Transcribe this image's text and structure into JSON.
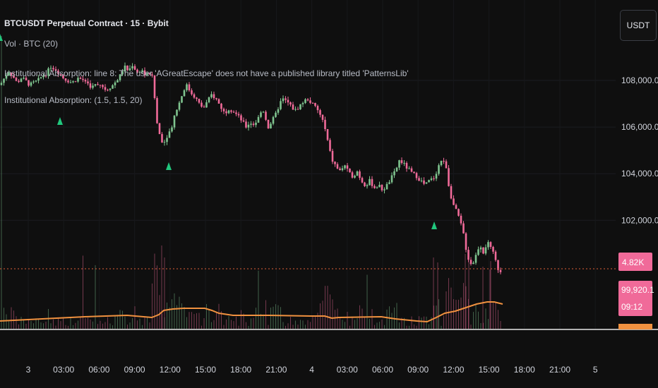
{
  "header": {
    "symbol_title": "BTCUSDT Perpetual Contract · 15 · Bybit",
    "volume_legend": "Vol · BTC (20)",
    "error_legend": "Institutional Absorption: line 8: The user 'AGreatEscape' does not have a published library titled 'PatternsLib'",
    "indicator_legend": "Institutional Absorption: (1.5, 1.5, 20)"
  },
  "currency_button": "USDT",
  "price_scale": {
    "ticks": [
      "108,000.0",
      "106,000.0",
      "104,000.0",
      "102,000.0"
    ]
  },
  "badges": {
    "volume": "4.82K",
    "price": "99,920.1",
    "countdown": "09:12"
  },
  "colors": {
    "background": "#0f0f0f",
    "up_candle": "#7fc48f",
    "down_candle": "#f06a99",
    "volume_ma": "#f0913f",
    "signal_arrow": "#21c77d",
    "last_price_line": "#e0613a",
    "badge_pink": "#f06a99"
  },
  "chart_data": {
    "type": "candlestick",
    "ylim": [
      98400,
      109800
    ],
    "x_ticks": [
      "3",
      "03:00",
      "06:00",
      "09:00",
      "12:00",
      "15:00",
      "18:00",
      "21:00",
      "4",
      "03:00",
      "06:00",
      "09:00",
      "12:00",
      "15:00",
      "18:00",
      "21:00",
      "5"
    ],
    "last_price": 99920.1,
    "price_path": [
      [
        0,
        107800
      ],
      [
        6,
        108100
      ],
      [
        12,
        108400
      ],
      [
        18,
        108200
      ],
      [
        24,
        107900
      ],
      [
        30,
        108100
      ],
      [
        36,
        108000
      ],
      [
        42,
        107800
      ],
      [
        48,
        107900
      ],
      [
        54,
        108000
      ],
      [
        60,
        108200
      ],
      [
        66,
        108300
      ],
      [
        72,
        108600
      ],
      [
        78,
        108500
      ],
      [
        84,
        108300
      ],
      [
        90,
        108100
      ],
      [
        96,
        108000
      ],
      [
        102,
        107900
      ],
      [
        110,
        108100
      ],
      [
        120,
        108000
      ],
      [
        130,
        107700
      ],
      [
        140,
        107900
      ],
      [
        150,
        107600
      ],
      [
        160,
        107800
      ],
      [
        170,
        108200
      ],
      [
        176,
        108600
      ],
      [
        182,
        108400
      ],
      [
        188,
        108700
      ],
      [
        194,
        108300
      ],
      [
        200,
        108500
      ],
      [
        206,
        108200
      ],
      [
        212,
        108300
      ],
      [
        216,
        108100
      ],
      [
        218,
        107900
      ],
      [
        220,
        106600
      ],
      [
        224,
        105900
      ],
      [
        228,
        105500
      ],
      [
        232,
        105300
      ],
      [
        236,
        105600
      ],
      [
        240,
        105800
      ],
      [
        244,
        106100
      ],
      [
        248,
        106600
      ],
      [
        252,
        106900
      ],
      [
        256,
        107200
      ],
      [
        260,
        107600
      ],
      [
        264,
        107800
      ],
      [
        270,
        107500
      ],
      [
        276,
        107300
      ],
      [
        282,
        107000
      ],
      [
        288,
        106800
      ],
      [
        294,
        107100
      ],
      [
        300,
        107400
      ],
      [
        306,
        107200
      ],
      [
        312,
        106900
      ],
      [
        318,
        106600
      ],
      [
        324,
        106800
      ],
      [
        330,
        106700
      ],
      [
        336,
        106500
      ],
      [
        342,
        106300
      ],
      [
        348,
        106000
      ],
      [
        354,
        106200
      ],
      [
        360,
        106100
      ],
      [
        366,
        106400
      ],
      [
        372,
        106800
      ],
      [
        376,
        106400
      ],
      [
        380,
        106000
      ],
      [
        384,
        106200
      ],
      [
        390,
        106500
      ],
      [
        396,
        107000
      ],
      [
        400,
        107200
      ],
      [
        406,
        107100
      ],
      [
        412,
        106900
      ],
      [
        418,
        106700
      ],
      [
        424,
        106900
      ],
      [
        430,
        107100
      ],
      [
        436,
        107200
      ],
      [
        442,
        107000
      ],
      [
        448,
        106800
      ],
      [
        454,
        106500
      ],
      [
        458,
        106200
      ],
      [
        462,
        105700
      ],
      [
        466,
        105100
      ],
      [
        470,
        104600
      ],
      [
        476,
        104300
      ],
      [
        482,
        104100
      ],
      [
        488,
        104400
      ],
      [
        494,
        104000
      ],
      [
        500,
        103900
      ],
      [
        506,
        104100
      ],
      [
        512,
        103700
      ],
      [
        518,
        103500
      ],
      [
        524,
        103700
      ],
      [
        530,
        103400
      ],
      [
        536,
        103500
      ],
      [
        542,
        103300
      ],
      [
        548,
        103500
      ],
      [
        554,
        103800
      ],
      [
        560,
        104100
      ],
      [
        566,
        104600
      ],
      [
        572,
        104400
      ],
      [
        578,
        104200
      ],
      [
        584,
        104000
      ],
      [
        590,
        103900
      ],
      [
        596,
        103700
      ],
      [
        602,
        103500
      ],
      [
        608,
        103700
      ],
      [
        614,
        103800
      ],
      [
        620,
        104200
      ],
      [
        624,
        104600
      ],
      [
        628,
        104500
      ],
      [
        632,
        104300
      ],
      [
        636,
        103400
      ],
      [
        640,
        102900
      ],
      [
        644,
        102500
      ],
      [
        648,
        102300
      ],
      [
        652,
        101900
      ],
      [
        656,
        101500
      ],
      [
        660,
        100800
      ],
      [
        664,
        100300
      ],
      [
        668,
        100100
      ],
      [
        672,
        100300
      ],
      [
        676,
        100700
      ],
      [
        680,
        101000
      ],
      [
        684,
        100600
      ],
      [
        688,
        100900
      ],
      [
        692,
        101000
      ],
      [
        696,
        100700
      ],
      [
        700,
        100500
      ],
      [
        704,
        100000
      ],
      [
        708,
        99800
      ],
      [
        712,
        99920
      ]
    ],
    "volume_ma_path": [
      [
        0,
        455
      ],
      [
        60,
        452
      ],
      [
        120,
        449
      ],
      [
        180,
        447
      ],
      [
        215,
        450
      ],
      [
        225,
        446
      ],
      [
        232,
        440
      ],
      [
        245,
        438
      ],
      [
        260,
        437
      ],
      [
        290,
        437
      ],
      [
        300,
        440
      ],
      [
        310,
        444
      ],
      [
        330,
        447
      ],
      [
        380,
        447
      ],
      [
        440,
        448
      ],
      [
        460,
        448
      ],
      [
        470,
        451
      ],
      [
        480,
        450
      ],
      [
        540,
        449
      ],
      [
        560,
        452
      ],
      [
        590,
        455
      ],
      [
        605,
        456
      ],
      [
        618,
        450
      ],
      [
        630,
        444
      ],
      [
        645,
        441
      ],
      [
        660,
        436
      ],
      [
        675,
        431
      ],
      [
        690,
        428
      ],
      [
        700,
        428
      ],
      [
        712,
        431
      ]
    ],
    "signal_arrows": [
      [
        85,
        172
      ],
      [
        239,
        236
      ],
      [
        615,
        320
      ]
    ]
  }
}
